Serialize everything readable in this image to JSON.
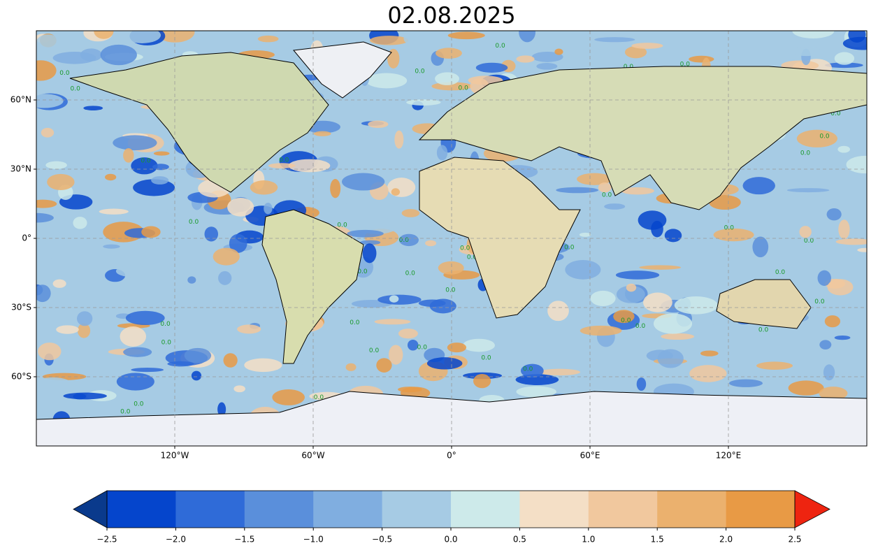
{
  "title": "02.08.2025",
  "map": {
    "xlim": [
      -180,
      180
    ],
    "ylim": [
      -90,
      90
    ],
    "xticks": [
      {
        "value": -120,
        "label": "120°W"
      },
      {
        "value": -60,
        "label": "60°W"
      },
      {
        "value": 0,
        "label": "0°"
      },
      {
        "value": 60,
        "label": "60°E"
      },
      {
        "value": 120,
        "label": "120°E"
      }
    ],
    "yticks": [
      {
        "value": 60,
        "label": "60°N"
      },
      {
        "value": 30,
        "label": "30°N"
      },
      {
        "value": 0,
        "label": "0°"
      },
      {
        "value": -30,
        "label": "30°S"
      },
      {
        "value": -60,
        "label": "60°S"
      }
    ],
    "grid": true,
    "contour_label": "0.0"
  },
  "colorbar": {
    "lim": [
      -2.5,
      2.5
    ],
    "ticks": [
      {
        "value": -2.5,
        "label": "−2.5"
      },
      {
        "value": -2.0,
        "label": "−2.0"
      },
      {
        "value": -1.5,
        "label": "−1.5"
      },
      {
        "value": -1.0,
        "label": "−1.0"
      },
      {
        "value": -0.5,
        "label": "−0.5"
      },
      {
        "value": 0,
        "label": "0.0"
      },
      0.5,
      {
        "value": 1.0,
        "label": "1.0"
      },
      1.5,
      {
        "value": 2.0,
        "label": "2.0"
      },
      2.5
    ],
    "colors": [
      "#0545cc",
      "#2f6bd8",
      "#5a8fdb",
      "#80aee0",
      "#a6cbe4",
      "#cdeaea",
      "#f4dfc6",
      "#f1c89e",
      "#ebb16e",
      "#e89a45"
    ],
    "under_color": "#0a3a8c",
    "over_color": "#ee2410"
  }
}
